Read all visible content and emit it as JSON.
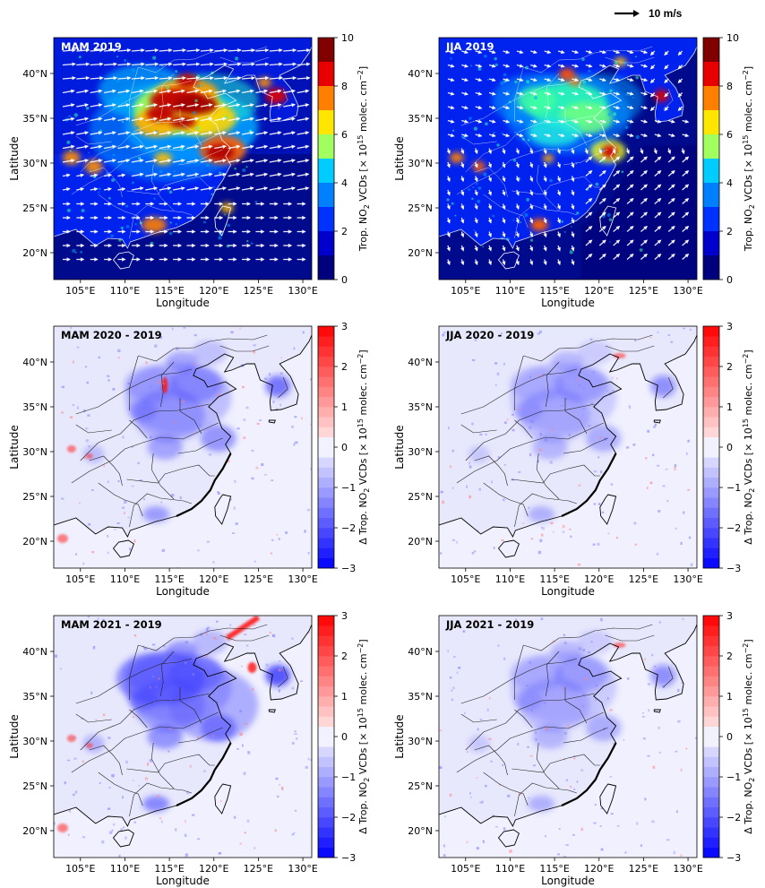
{
  "figure": {
    "wind_scale_label": "10 m/s",
    "xlabel": "Longitude",
    "ylabel": "Latitude",
    "x_ticks": [
      "105°E",
      "110°E",
      "115°E",
      "120°E",
      "125°E",
      "130°E"
    ],
    "x_tick_values": [
      105,
      110,
      115,
      120,
      125,
      130
    ],
    "y_ticks": [
      "20°N",
      "25°N",
      "30°N",
      "35°N",
      "40°N"
    ],
    "y_tick_values": [
      20,
      25,
      30,
      35,
      40
    ],
    "lon_range": [
      102,
      131
    ],
    "lat_range": [
      17,
      44
    ]
  },
  "colorbars": {
    "absolute": {
      "ticks": [
        "0",
        "2",
        "4",
        "6",
        "8",
        "10"
      ],
      "tick_values": [
        0,
        2,
        4,
        6,
        8,
        10
      ],
      "range": [
        0,
        10
      ],
      "label_text": "Trop. NO",
      "label_sub": "2",
      "label_mid": " VCDs [× 10",
      "label_sup": "15",
      "label_end": " molec. cm",
      "label_sup2": "−2",
      "label_close": "]",
      "colors": [
        "#00007f",
        "#0000d4",
        "#0046ff",
        "#0098ff",
        "#1ee5e0",
        "#7fff7f",
        "#e1ff16",
        "#ffb400",
        "#ff4400",
        "#d40000",
        "#7f0000"
      ]
    },
    "difference": {
      "ticks": [
        "−3",
        "−2",
        "−1",
        "0",
        "1",
        "2",
        "3"
      ],
      "tick_values": [
        -3,
        -2,
        -1,
        0,
        1,
        2,
        3
      ],
      "range": [
        -3,
        3
      ],
      "label_text": "Δ Trop. NO",
      "label_sub": "2",
      "label_mid": " VCDs [× 10",
      "label_sup": "15",
      "label_end": " molec. cm",
      "label_sup2": "−2",
      "label_close": "]"
    }
  },
  "panels": [
    {
      "title": "MAM 2019",
      "kind": "absolute",
      "season": "MAM",
      "colorbar": "absolute"
    },
    {
      "title": "JJA 2019",
      "kind": "absolute",
      "season": "JJA",
      "colorbar": "absolute"
    },
    {
      "title": "MAM 2020 - 2019",
      "kind": "difference",
      "season": "MAM",
      "colorbar": "difference"
    },
    {
      "title": "JJA 2020 - 2019",
      "kind": "difference",
      "season": "JJA",
      "colorbar": "difference"
    },
    {
      "title": "MAM 2021 - 2019",
      "kind": "difference",
      "season": "MAM",
      "colorbar": "difference"
    },
    {
      "title": "JJA 2021 - 2019",
      "kind": "difference",
      "season": "JJA",
      "colorbar": "difference"
    }
  ]
}
